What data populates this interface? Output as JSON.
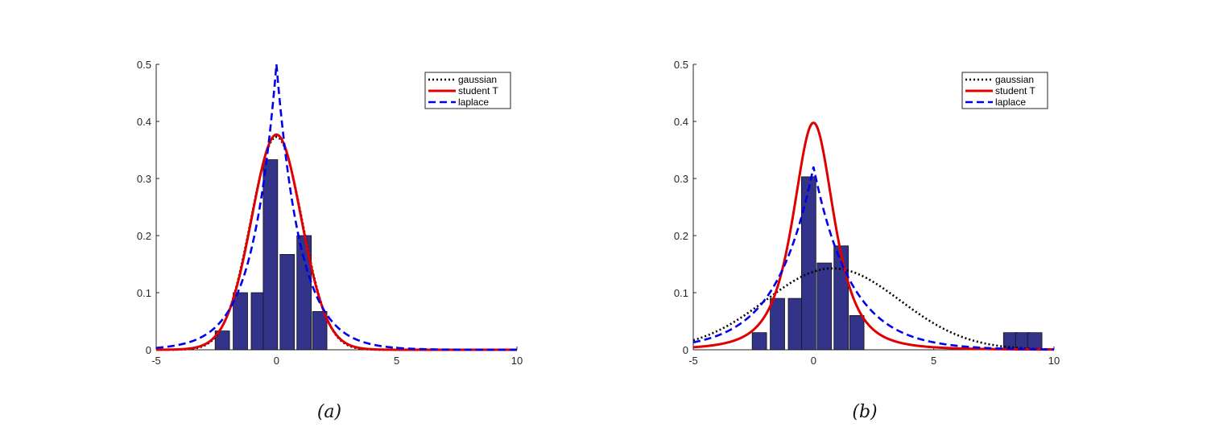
{
  "chart_data": [
    {
      "type": "bar",
      "caption": "(a)",
      "xlim": [
        -5,
        10
      ],
      "ylim": [
        0,
        0.5
      ],
      "xticks": [
        "-5",
        "0",
        "5",
        "10"
      ],
      "yticks": [
        "0",
        "0.1",
        "0.2",
        "0.3",
        "0.4",
        "0.5"
      ],
      "legend_placement": "top-right",
      "bar_color": "#33338a",
      "bars": {
        "x": [
          -2.25,
          -1.5,
          -0.75,
          -0.25,
          0.45,
          1.15,
          1.8
        ],
        "values": [
          0.033,
          0.1,
          0.1,
          0.333,
          0.167,
          0.2,
          0.067
        ]
      },
      "series": [
        {
          "name": "gaussian",
          "color": "#000000",
          "style": "dotted",
          "dist": "gaussian",
          "mu": 0.0,
          "sigma": 1.07
        },
        {
          "name": "student T",
          "color": "#e00000",
          "style": "solid",
          "dist": "t",
          "mu": 0.0,
          "sigma": 1.05,
          "nu": 30
        },
        {
          "name": "laplace",
          "color": "#0000ee",
          "style": "dashed",
          "dist": "laplace",
          "mu": 0.0,
          "b": 1.0
        }
      ]
    },
    {
      "type": "bar",
      "caption": "(b)",
      "xlim": [
        -5,
        10
      ],
      "ylim": [
        0,
        0.5
      ],
      "xticks": [
        "-5",
        "0",
        "5",
        "10"
      ],
      "yticks": [
        "0",
        "0.1",
        "0.2",
        "0.3",
        "0.4",
        "0.5"
      ],
      "legend_placement": "top-right",
      "bar_color": "#33338a",
      "bars": {
        "x": [
          -2.25,
          -1.5,
          -0.75,
          -0.2,
          0.45,
          1.15,
          1.8,
          8.2,
          8.7,
          9.2
        ],
        "values": [
          0.03,
          0.09,
          0.09,
          0.303,
          0.152,
          0.182,
          0.06,
          0.03,
          0.03,
          0.03
        ]
      },
      "series": [
        {
          "name": "gaussian",
          "color": "#000000",
          "style": "dotted",
          "dist": "gaussian",
          "mu": 0.8,
          "sigma": 2.8
        },
        {
          "name": "student T",
          "color": "#e00000",
          "style": "solid",
          "dist": "t",
          "mu": 0.0,
          "sigma": 0.91,
          "nu": 2.5
        },
        {
          "name": "laplace",
          "color": "#0000ee",
          "style": "dashed",
          "dist": "laplace",
          "mu": 0.0,
          "b": 1.56
        }
      ]
    }
  ]
}
